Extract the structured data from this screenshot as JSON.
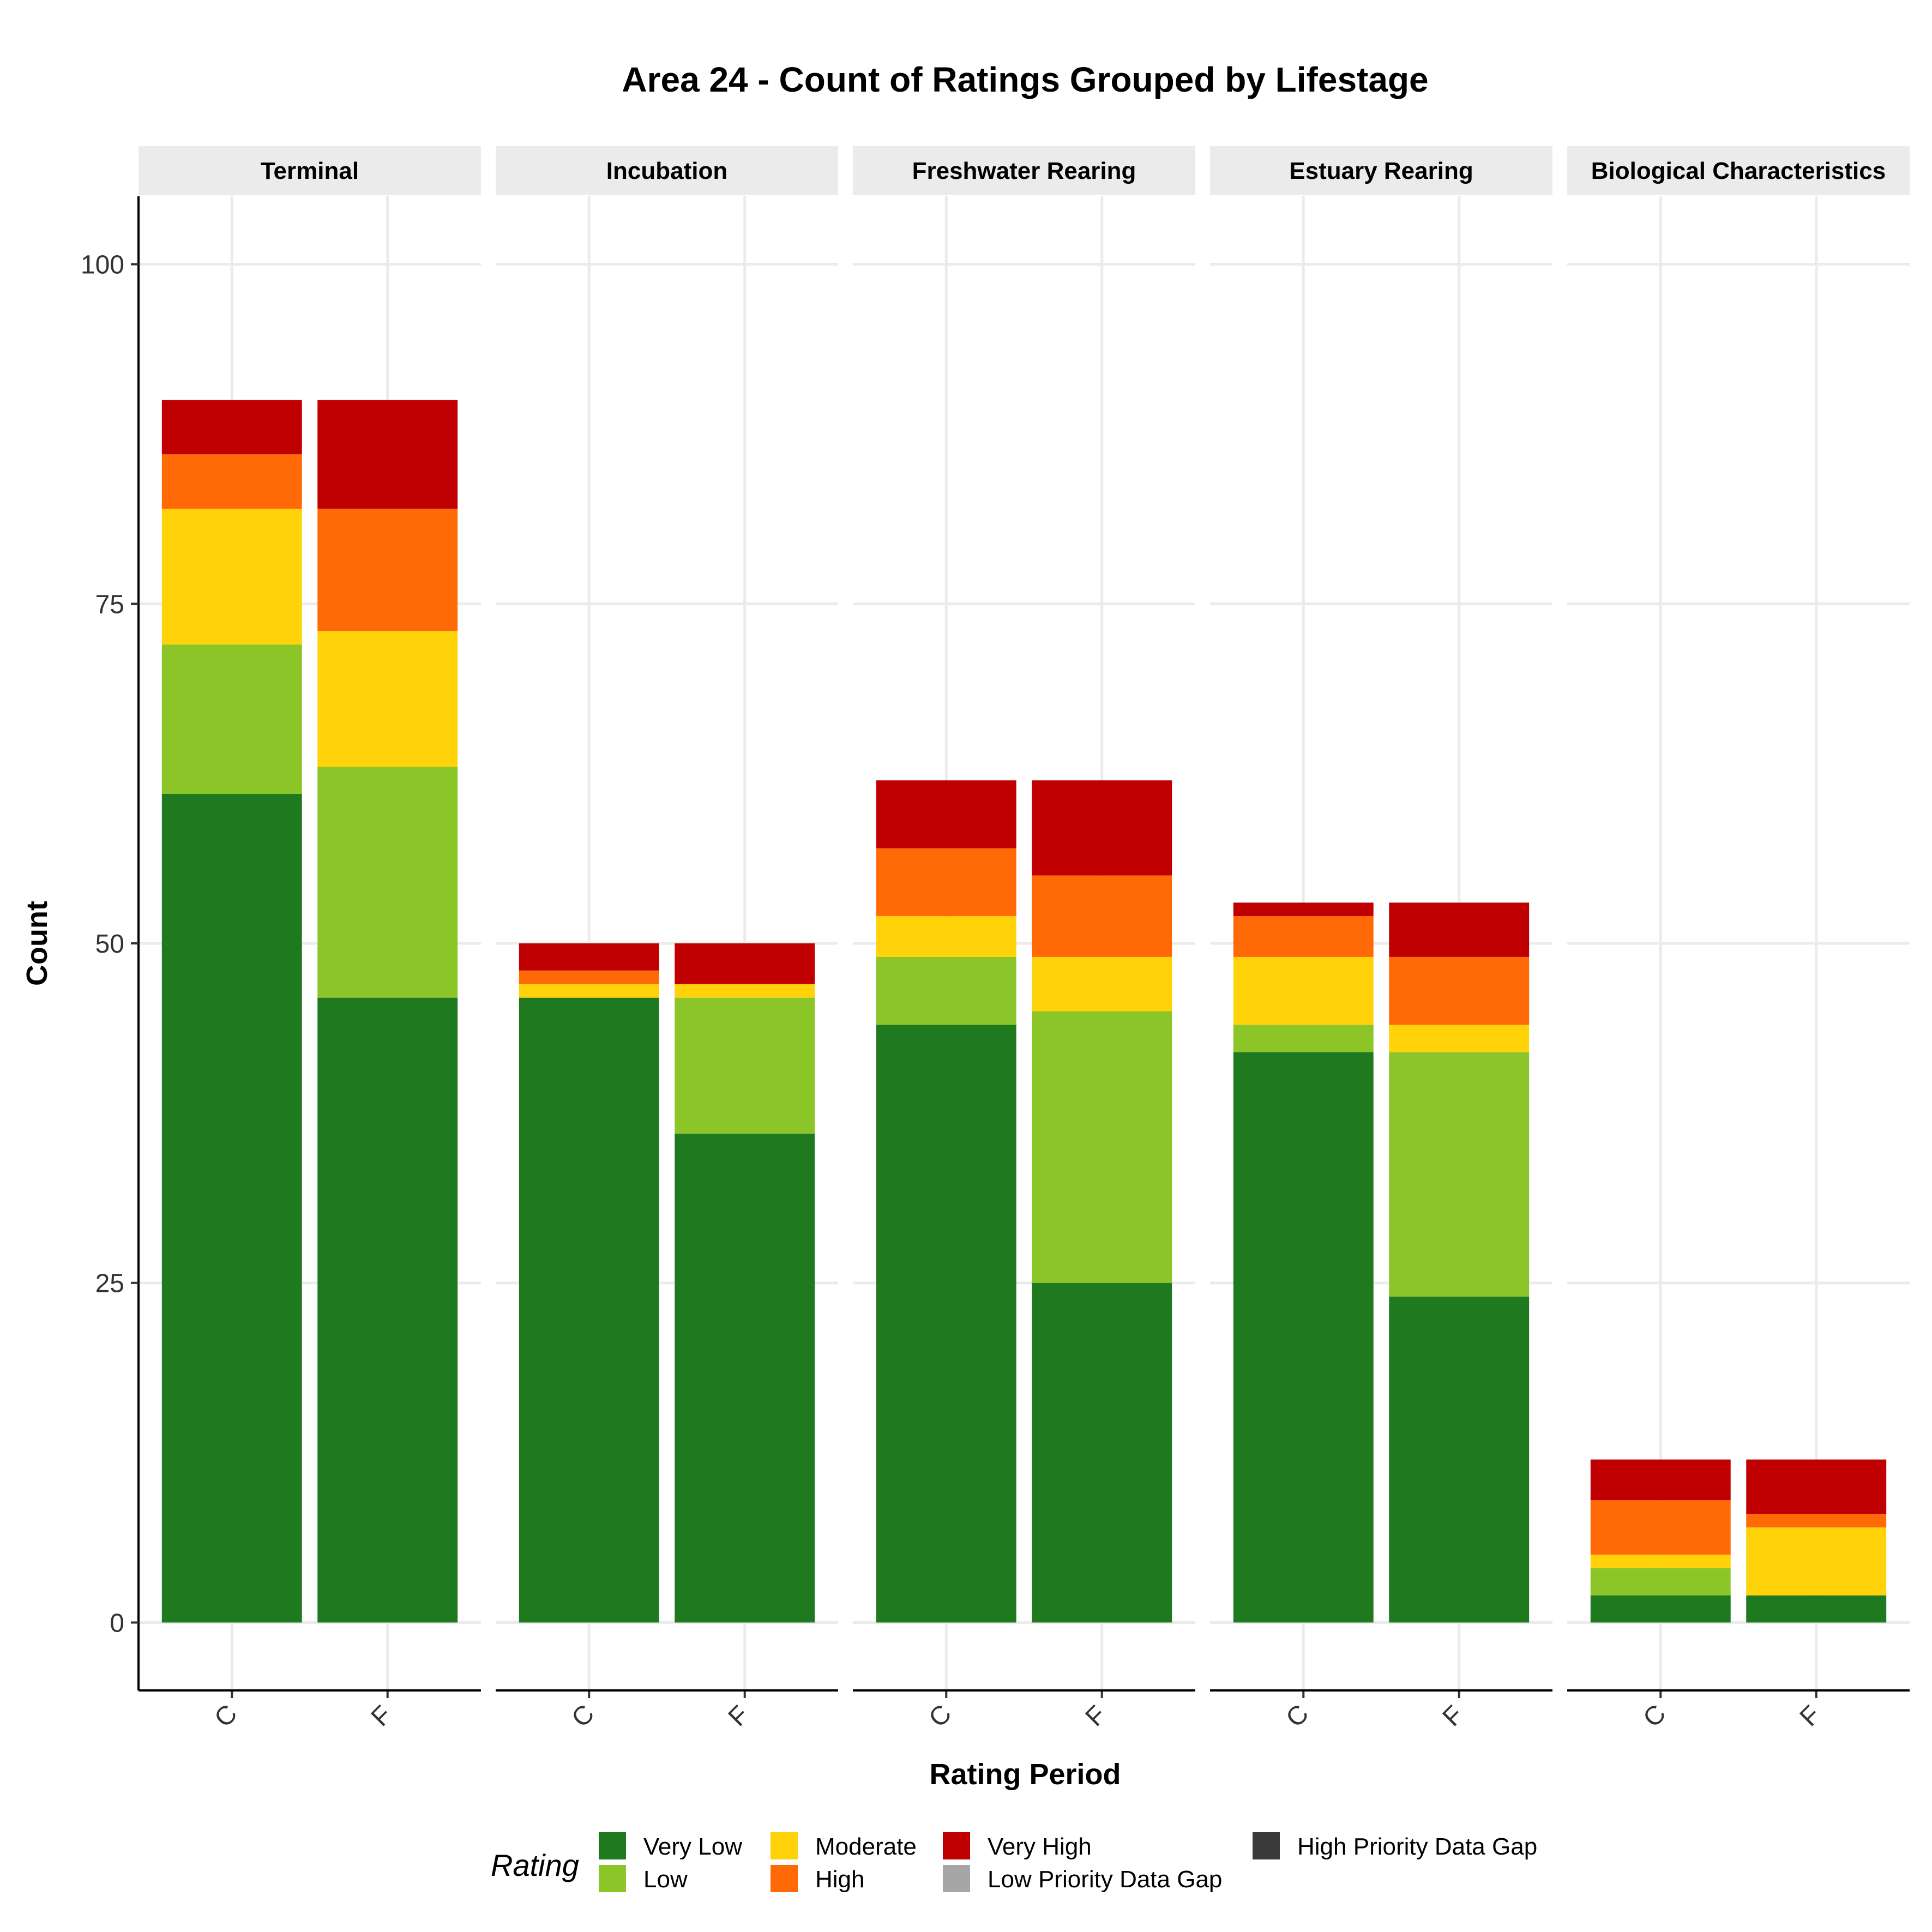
{
  "chart_data": {
    "type": "bar",
    "stacked": true,
    "title": "Area 24 - Count of Ratings Grouped by Lifestage",
    "xlabel": "Rating Period",
    "ylabel": "Count",
    "ylim": [
      -5,
      105
    ],
    "yticks": [
      0,
      25,
      50,
      75,
      100
    ],
    "categories": [
      "C",
      "F"
    ],
    "facets": [
      {
        "name": "Terminal",
        "bars": [
          {
            "category": "C",
            "values": {
              "Very Low": 61,
              "Low": 11,
              "Moderate": 10,
              "High": 4,
              "Very High": 4
            }
          },
          {
            "category": "F",
            "values": {
              "Very Low": 46,
              "Low": 17,
              "Moderate": 10,
              "High": 9,
              "Very High": 8
            }
          }
        ]
      },
      {
        "name": "Incubation",
        "bars": [
          {
            "category": "C",
            "values": {
              "Very Low": 46,
              "Low": 0,
              "Moderate": 1,
              "High": 1,
              "Very High": 2
            }
          },
          {
            "category": "F",
            "values": {
              "Very Low": 36,
              "Low": 10,
              "Moderate": 1,
              "High": 0,
              "Very High": 3
            }
          }
        ]
      },
      {
        "name": "Freshwater Rearing",
        "bars": [
          {
            "category": "C",
            "values": {
              "Very Low": 44,
              "Low": 5,
              "Moderate": 3,
              "High": 5,
              "Very High": 5
            }
          },
          {
            "category": "F",
            "values": {
              "Very Low": 25,
              "Low": 20,
              "Moderate": 4,
              "High": 6,
              "Very High": 7
            }
          }
        ]
      },
      {
        "name": "Estuary Rearing",
        "bars": [
          {
            "category": "C",
            "values": {
              "Very Low": 42,
              "Low": 2,
              "Moderate": 5,
              "High": 3,
              "Very High": 1
            }
          },
          {
            "category": "F",
            "values": {
              "Very Low": 24,
              "Low": 18,
              "Moderate": 2,
              "High": 5,
              "Very High": 4
            }
          }
        ]
      },
      {
        "name": "Biological Characteristics",
        "bars": [
          {
            "category": "C",
            "values": {
              "Very Low": 2,
              "Low": 2,
              "Moderate": 1,
              "High": 4,
              "Very High": 3
            }
          },
          {
            "category": "F",
            "values": {
              "Very Low": 2,
              "Low": 0,
              "Moderate": 5,
              "High": 1,
              "Very High": 4
            }
          }
        ]
      }
    ],
    "legend": {
      "title": "Rating",
      "position": "bottom",
      "entries": [
        {
          "label": "Very Low",
          "color": "#1f7a1f"
        },
        {
          "label": "Low",
          "color": "#8bc528"
        },
        {
          "label": "Moderate",
          "color": "#ffd20a"
        },
        {
          "label": "High",
          "color": "#ff6a06"
        },
        {
          "label": "Very High",
          "color": "#c00000"
        },
        {
          "label": "Low Priority Data Gap",
          "color": "#a6a6a6"
        },
        {
          "label": "High Priority Data Gap",
          "color": "#3a3a3a"
        }
      ]
    },
    "stack_order": [
      "Very Low",
      "Low",
      "Moderate",
      "High",
      "Very High"
    ]
  }
}
